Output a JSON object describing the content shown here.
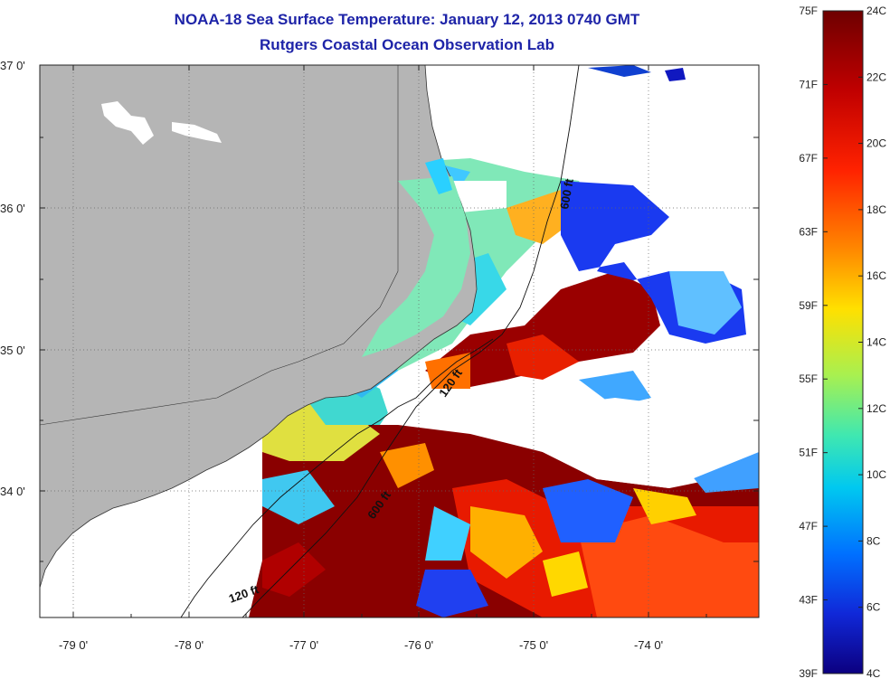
{
  "title": "NOAA-18 Sea Surface Temperature:  January 12, 2013 0740 GMT",
  "subtitle": "Rutgers Coastal Ocean Observation Lab",
  "lat_labels": [
    "37 0'",
    "36 0'",
    "35 0'",
    "34 0'"
  ],
  "lon_labels": [
    "-79 0'",
    "-78 0'",
    "-77 0'",
    "-76 0'",
    "-75 0'",
    "-74 0'"
  ],
  "isobath_labels": [
    "600 ft",
    "120 ft",
    "600 ft",
    "120 ft"
  ],
  "colorbar": {
    "fahrenheit": [
      "75F",
      "71F",
      "67F",
      "63F",
      "59F",
      "55F",
      "51F",
      "47F",
      "43F",
      "39F"
    ],
    "celsius": [
      "24C",
      "22C",
      "20C",
      "18C",
      "16C",
      "14C",
      "12C",
      "10C",
      "8C",
      "6C",
      "4C"
    ],
    "colors": [
      "#7a0000",
      "#c80000",
      "#ff2a00",
      "#ff7a00",
      "#ffd000",
      "#c8f030",
      "#5ef0a0",
      "#00d8f0",
      "#0088ff",
      "#1030e0",
      "#100090"
    ]
  },
  "colors": {
    "land": "#b5b5b5",
    "title": "#1e24a8"
  }
}
